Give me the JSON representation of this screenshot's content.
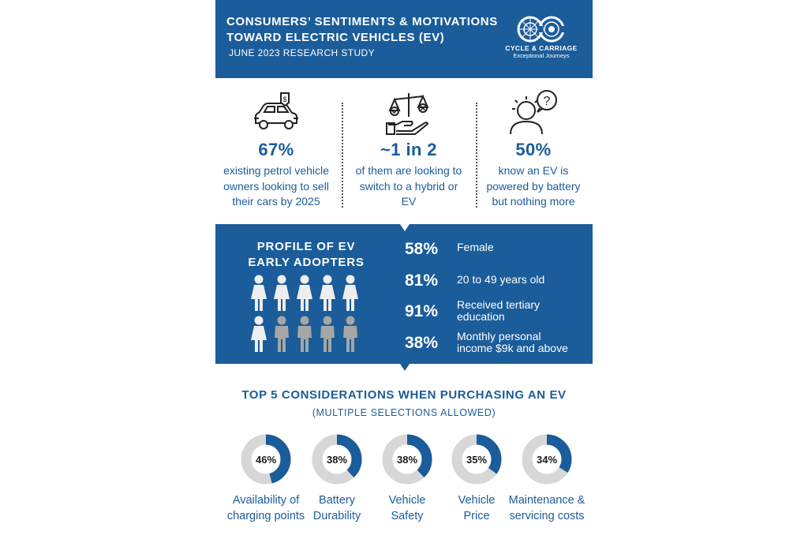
{
  "header": {
    "title_line1": "CONSUMERS’ SENTIMENTS & MOTIVATIONS",
    "title_line2": "TOWARD ELECTRIC VEHICLES (EV)",
    "subtitle": "JUNE 2023 RESEARCH STUDY",
    "logo_text": "CYCLE & CARRIAGE",
    "logo_tagline": "Exceptional Journeys"
  },
  "stats": [
    {
      "icon": "car-price-tag-icon",
      "value": "67%",
      "desc": "existing petrol vehicle owners looking to sell their cars by 2025"
    },
    {
      "icon": "balance-scale-icon",
      "value": "~1 in 2",
      "desc": "of them are looking to switch to a hybrid or EV"
    },
    {
      "icon": "person-question-icon",
      "value": "50%",
      "desc": "know an EV is powered by battery but nothing more"
    }
  ],
  "profile": {
    "title_line1": "PROFILE OF EV",
    "title_line2": "EARLY ADOPTERS",
    "items": [
      {
        "pct": "58%",
        "line1": "Female",
        "line2": ""
      },
      {
        "pct": "81%",
        "line1": "20 to 49 years old",
        "line2": ""
      },
      {
        "pct": "91%",
        "line1": "Received tertiary",
        "line2": "education"
      },
      {
        "pct": "38%",
        "line1": "Monthly personal",
        "line2": "income $9k and above"
      }
    ]
  },
  "colors": {
    "brand_blue": "#1b5c9a",
    "ring_grey": "#d7d7d7",
    "person_light": "#eeeeee",
    "person_grey": "#a6a6a6"
  },
  "chart_data": {
    "type": "donut",
    "title": "TOP 5 CONSIDERATIONS WHEN PURCHASING AN EV",
    "subtitle": "(MULTIPLE SELECTIONS ALLOWED)",
    "unit": "%",
    "categories": [
      [
        "Availability of",
        "charging points"
      ],
      [
        "Battery",
        "Durability"
      ],
      [
        "Vehicle",
        "Safety"
      ],
      [
        "Vehicle",
        "Price"
      ],
      [
        "Maintenance &",
        "servicing costs"
      ]
    ],
    "values": [
      46,
      38,
      38,
      35,
      34
    ],
    "value_labels": [
      "46%",
      "38%",
      "38%",
      "35%",
      "34%"
    ]
  }
}
